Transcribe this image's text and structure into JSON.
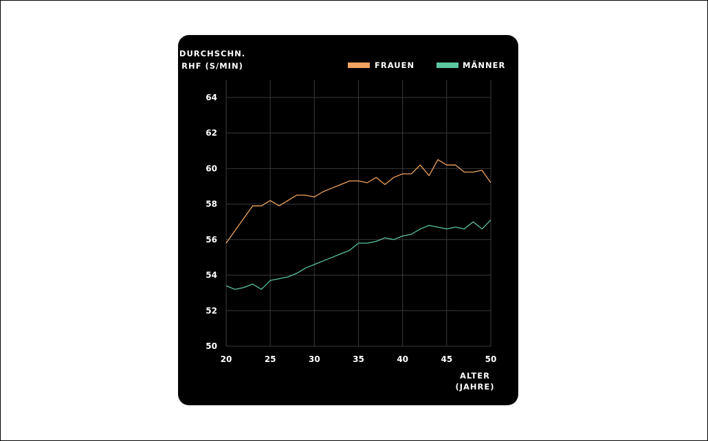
{
  "chart_data": {
    "type": "line",
    "ylabel_lines": [
      "DURCHSCHN.",
      "RHF (S/MIN)"
    ],
    "xlabel_lines": [
      "ALTER",
      "(JAHRE)"
    ],
    "xlim": [
      20,
      50
    ],
    "ylim": [
      50,
      65
    ],
    "xticks": [
      20,
      25,
      30,
      35,
      40,
      45,
      50
    ],
    "yticks": [
      50,
      52,
      54,
      56,
      58,
      60,
      62,
      64
    ],
    "grid": true,
    "legend_position": "top-right",
    "x": [
      20,
      21,
      22,
      23,
      24,
      25,
      26,
      27,
      28,
      29,
      30,
      31,
      32,
      33,
      34,
      35,
      36,
      37,
      38,
      39,
      40,
      41,
      42,
      43,
      44,
      45,
      46,
      47,
      48,
      49,
      50
    ],
    "series": [
      {
        "name": "FRAUEN",
        "color": "#f2a562",
        "values": [
          55.8,
          56.5,
          57.2,
          57.9,
          57.9,
          58.2,
          57.9,
          58.2,
          58.5,
          58.5,
          58.4,
          58.7,
          58.9,
          59.1,
          59.3,
          59.3,
          59.2,
          59.5,
          59.1,
          59.5,
          59.7,
          59.7,
          60.2,
          59.6,
          60.5,
          60.2,
          60.2,
          59.8,
          59.8,
          59.9,
          59.2
        ]
      },
      {
        "name": "MÄNNER",
        "color": "#5cc79e",
        "values": [
          53.4,
          53.2,
          53.3,
          53.5,
          53.2,
          53.7,
          53.8,
          53.9,
          54.1,
          54.4,
          54.6,
          54.8,
          55.0,
          55.2,
          55.4,
          55.8,
          55.8,
          55.9,
          56.1,
          56.0,
          56.2,
          56.3,
          56.6,
          56.8,
          56.7,
          56.6,
          56.7,
          56.6,
          57.0,
          56.6,
          57.1
        ]
      }
    ]
  }
}
